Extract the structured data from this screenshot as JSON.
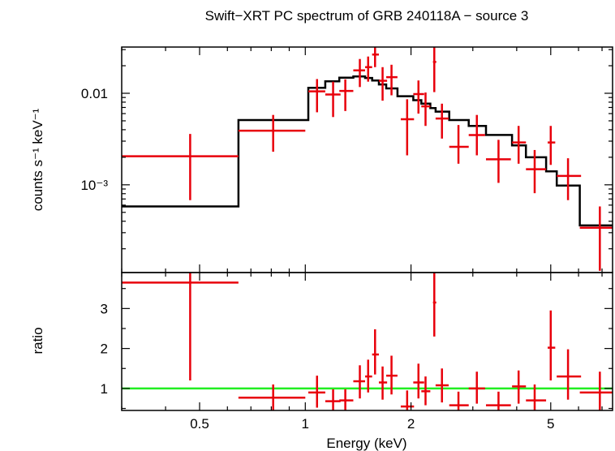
{
  "chart_data": [
    {
      "type": "scatter",
      "panel": "spectrum",
      "title": "Swift−XRT PC spectrum of GRB 240118A − source 3",
      "xlabel": "",
      "ylabel": "counts s⁻¹ keV⁻¹",
      "x_scale": "log",
      "y_scale": "log",
      "xlim": [
        0.3,
        7.5
      ],
      "ylim": [
        0.00011,
        0.032
      ],
      "y_ticks": [
        {
          "value": 0.001,
          "label": "10⁻³"
        },
        {
          "value": 0.01,
          "label": "0.01"
        }
      ],
      "colors": {
        "data": "#e8000b",
        "model": "#000000"
      },
      "series": [
        {
          "role": "data",
          "points": [
            {
              "x": 0.47,
              "xlo": 0.3,
              "xhi": 0.645,
              "y": 0.00205,
              "ylo": 0.00068,
              "yhi": 0.0036
            },
            {
              "x": 0.81,
              "xlo": 0.645,
              "xhi": 1.0,
              "y": 0.0039,
              "ylo": 0.0023,
              "yhi": 0.0058
            },
            {
              "x": 1.08,
              "xlo": 1.02,
              "xhi": 1.14,
              "y": 0.0105,
              "ylo": 0.0062,
              "yhi": 0.0143
            },
            {
              "x": 1.2,
              "xlo": 1.14,
              "xhi": 1.26,
              "y": 0.0097,
              "ylo": 0.0055,
              "yhi": 0.0134
            },
            {
              "x": 1.3,
              "xlo": 1.25,
              "xhi": 1.37,
              "y": 0.0106,
              "ylo": 0.0064,
              "yhi": 0.0142
            },
            {
              "x": 1.43,
              "xlo": 1.37,
              "xhi": 1.48,
              "y": 0.0178,
              "ylo": 0.0117,
              "yhi": 0.0237
            },
            {
              "x": 1.51,
              "xlo": 1.48,
              "xhi": 1.55,
              "y": 0.0193,
              "ylo": 0.0134,
              "yhi": 0.0252
            },
            {
              "x": 1.58,
              "xlo": 1.55,
              "xhi": 1.62,
              "y": 0.0265,
              "ylo": 0.0193,
              "yhi": 0.0335
            },
            {
              "x": 1.66,
              "xlo": 1.62,
              "xhi": 1.71,
              "y": 0.0137,
              "ylo": 0.0083,
              "yhi": 0.0193
            },
            {
              "x": 1.76,
              "xlo": 1.7,
              "xhi": 1.83,
              "y": 0.015,
              "ylo": 0.0095,
              "yhi": 0.0205
            },
            {
              "x": 1.95,
              "xlo": 1.87,
              "xhi": 2.04,
              "y": 0.0052,
              "ylo": 0.0021,
              "yhi": 0.0086
            },
            {
              "x": 2.1,
              "xlo": 2.03,
              "xhi": 2.18,
              "y": 0.0098,
              "ylo": 0.006,
              "yhi": 0.0138
            },
            {
              "x": 2.2,
              "xlo": 2.14,
              "xhi": 2.27,
              "y": 0.0072,
              "ylo": 0.0044,
              "yhi": 0.0102
            },
            {
              "x": 2.33,
              "xlo": 2.31,
              "xhi": 2.36,
              "y": 0.022,
              "ylo": 0.0103,
              "yhi": 0.0317
            },
            {
              "x": 2.45,
              "xlo": 2.35,
              "xhi": 2.56,
              "y": 0.0053,
              "ylo": 0.0032,
              "yhi": 0.0077
            },
            {
              "x": 2.73,
              "xlo": 2.57,
              "xhi": 2.92,
              "y": 0.0026,
              "ylo": 0.0017,
              "yhi": 0.0045
            },
            {
              "x": 3.08,
              "xlo": 2.92,
              "xhi": 3.25,
              "y": 0.0035,
              "ylo": 0.0021,
              "yhi": 0.0058
            },
            {
              "x": 3.55,
              "xlo": 3.27,
              "xhi": 3.85,
              "y": 0.0019,
              "ylo": 0.00105,
              "yhi": 0.0031
            },
            {
              "x": 4.05,
              "xlo": 3.88,
              "xhi": 4.25,
              "y": 0.0029,
              "ylo": 0.0017,
              "yhi": 0.0044
            },
            {
              "x": 4.5,
              "xlo": 4.25,
              "xhi": 4.85,
              "y": 0.00148,
              "ylo": 0.00081,
              "yhi": 0.0024
            },
            {
              "x": 5.0,
              "xlo": 4.9,
              "xhi": 5.15,
              "y": 0.0029,
              "ylo": 0.00165,
              "yhi": 0.0044
            },
            {
              "x": 5.6,
              "xlo": 5.2,
              "xhi": 6.1,
              "y": 0.00125,
              "ylo": 0.00068,
              "yhi": 0.00195
            },
            {
              "x": 6.9,
              "xlo": 6.05,
              "xhi": 7.5,
              "y": 0.00034,
              "ylo": 0.000115,
              "yhi": 0.00058
            }
          ]
        },
        {
          "role": "model",
          "steps": [
            {
              "xlo": 0.3,
              "xhi": 0.645,
              "y": 0.00058
            },
            {
              "xlo": 0.645,
              "xhi": 1.02,
              "y": 0.0051
            },
            {
              "xlo": 1.02,
              "xhi": 1.14,
              "y": 0.0115
            },
            {
              "xlo": 1.14,
              "xhi": 1.25,
              "y": 0.0135
            },
            {
              "xlo": 1.25,
              "xhi": 1.37,
              "y": 0.0148
            },
            {
              "xlo": 1.37,
              "xhi": 1.48,
              "y": 0.0153
            },
            {
              "xlo": 1.48,
              "xhi": 1.55,
              "y": 0.0147
            },
            {
              "xlo": 1.55,
              "xhi": 1.62,
              "y": 0.0138
            },
            {
              "xlo": 1.62,
              "xhi": 1.7,
              "y": 0.0125
            },
            {
              "xlo": 1.7,
              "xhi": 1.83,
              "y": 0.0113
            },
            {
              "xlo": 1.83,
              "xhi": 2.03,
              "y": 0.0093
            },
            {
              "xlo": 2.03,
              "xhi": 2.14,
              "y": 0.0084
            },
            {
              "xlo": 2.14,
              "xhi": 2.27,
              "y": 0.0077
            },
            {
              "xlo": 2.27,
              "xhi": 2.35,
              "y": 0.0069
            },
            {
              "xlo": 2.35,
              "xhi": 2.57,
              "y": 0.0063
            },
            {
              "xlo": 2.57,
              "xhi": 2.92,
              "y": 0.0051
            },
            {
              "xlo": 2.92,
              "xhi": 3.27,
              "y": 0.0044
            },
            {
              "xlo": 3.27,
              "xhi": 3.88,
              "y": 0.0035
            },
            {
              "xlo": 3.88,
              "xhi": 4.25,
              "y": 0.0027
            },
            {
              "xlo": 4.25,
              "xhi": 4.85,
              "y": 0.002
            },
            {
              "xlo": 4.85,
              "xhi": 5.2,
              "y": 0.0014
            },
            {
              "xlo": 5.2,
              "xhi": 6.05,
              "y": 0.00098
            },
            {
              "xlo": 6.05,
              "xhi": 7.5,
              "y": 0.00036
            }
          ]
        }
      ]
    },
    {
      "type": "scatter",
      "panel": "ratio",
      "xlabel": "Energy (keV)",
      "ylabel": "ratio",
      "x_scale": "log",
      "y_scale": "linear",
      "xlim": [
        0.3,
        7.5
      ],
      "ylim": [
        0.45,
        3.9
      ],
      "x_ticks": [
        {
          "value": 0.5,
          "label": "0.5"
        },
        {
          "value": 1,
          "label": "1"
        },
        {
          "value": 2,
          "label": "2"
        },
        {
          "value": 5,
          "label": "5"
        }
      ],
      "y_ticks": [
        {
          "value": 1,
          "label": "1"
        },
        {
          "value": 2,
          "label": "2"
        },
        {
          "value": 3,
          "label": "3"
        }
      ],
      "reference_line": 1,
      "colors": {
        "data": "#e8000b",
        "reference": "#22ee22"
      },
      "series": [
        {
          "role": "data",
          "points": [
            {
              "x": 0.47,
              "xlo": 0.3,
              "xhi": 0.645,
              "y": 3.65,
              "ylo": 1.2,
              "yhi": 3.9
            },
            {
              "x": 0.81,
              "xlo": 0.645,
              "xhi": 1.0,
              "y": 0.77,
              "ylo": 0.45,
              "yhi": 1.1
            },
            {
              "x": 1.08,
              "xlo": 1.02,
              "xhi": 1.14,
              "y": 0.9,
              "ylo": 0.52,
              "yhi": 1.32
            },
            {
              "x": 1.2,
              "xlo": 1.14,
              "xhi": 1.26,
              "y": 0.68,
              "ylo": 0.45,
              "yhi": 0.98
            },
            {
              "x": 1.3,
              "xlo": 1.25,
              "xhi": 1.37,
              "y": 0.7,
              "ylo": 0.45,
              "yhi": 0.98
            },
            {
              "x": 1.43,
              "xlo": 1.37,
              "xhi": 1.48,
              "y": 1.18,
              "ylo": 0.75,
              "yhi": 1.58
            },
            {
              "x": 1.51,
              "xlo": 1.48,
              "xhi": 1.55,
              "y": 1.3,
              "ylo": 0.9,
              "yhi": 1.72
            },
            {
              "x": 1.58,
              "xlo": 1.55,
              "xhi": 1.62,
              "y": 1.85,
              "ylo": 1.35,
              "yhi": 2.48
            },
            {
              "x": 1.66,
              "xlo": 1.62,
              "xhi": 1.71,
              "y": 1.15,
              "ylo": 0.72,
              "yhi": 1.55
            },
            {
              "x": 1.76,
              "xlo": 1.7,
              "xhi": 1.83,
              "y": 1.32,
              "ylo": 0.85,
              "yhi": 1.82
            },
            {
              "x": 1.95,
              "xlo": 1.87,
              "xhi": 2.04,
              "y": 0.55,
              "ylo": 0.45,
              "yhi": 0.95
            },
            {
              "x": 2.1,
              "xlo": 2.03,
              "xhi": 2.18,
              "y": 1.15,
              "ylo": 0.75,
              "yhi": 1.62
            },
            {
              "x": 2.2,
              "xlo": 2.14,
              "xhi": 2.27,
              "y": 0.93,
              "ylo": 0.58,
              "yhi": 1.3
            },
            {
              "x": 2.33,
              "xlo": 2.31,
              "xhi": 2.36,
              "y": 3.15,
              "ylo": 2.3,
              "yhi": 3.9
            },
            {
              "x": 2.45,
              "xlo": 2.35,
              "xhi": 2.56,
              "y": 1.08,
              "ylo": 0.65,
              "yhi": 1.5
            },
            {
              "x": 2.73,
              "xlo": 2.57,
              "xhi": 2.92,
              "y": 0.58,
              "ylo": 0.45,
              "yhi": 0.92
            },
            {
              "x": 3.08,
              "xlo": 2.92,
              "xhi": 3.25,
              "y": 1.0,
              "ylo": 0.62,
              "yhi": 1.42
            },
            {
              "x": 3.55,
              "xlo": 3.27,
              "xhi": 3.85,
              "y": 0.58,
              "ylo": 0.45,
              "yhi": 0.92
            },
            {
              "x": 4.05,
              "xlo": 3.88,
              "xhi": 4.25,
              "y": 1.05,
              "ylo": 0.62,
              "yhi": 1.45
            },
            {
              "x": 4.5,
              "xlo": 4.25,
              "xhi": 4.85,
              "y": 0.7,
              "ylo": 0.45,
              "yhi": 1.1
            },
            {
              "x": 5.0,
              "xlo": 4.9,
              "xhi": 5.15,
              "y": 2.02,
              "ylo": 1.2,
              "yhi": 2.95
            },
            {
              "x": 5.6,
              "xlo": 5.2,
              "xhi": 6.1,
              "y": 1.3,
              "ylo": 0.72,
              "yhi": 1.98
            },
            {
              "x": 6.9,
              "xlo": 6.05,
              "xhi": 7.5,
              "y": 0.9,
              "ylo": 0.45,
              "yhi": 1.42
            }
          ]
        }
      ]
    }
  ]
}
